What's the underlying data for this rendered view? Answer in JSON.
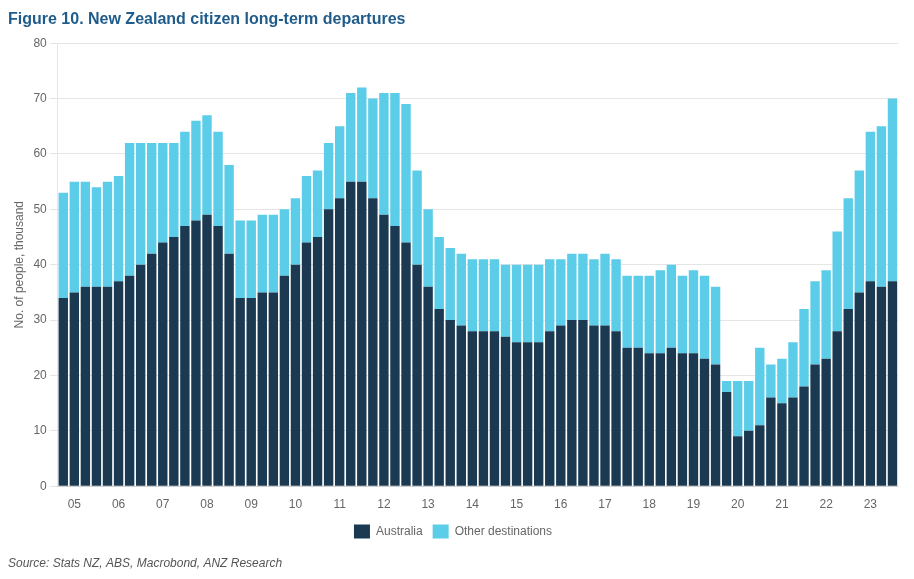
{
  "chart_data": {
    "type": "bar",
    "title": "Figure 10. New Zealand citizen long-term departures",
    "ylabel": "No. of people, thousand",
    "annotations": [
      "Source: Stats NZ, ABS, Macrobond, ANZ Research"
    ],
    "categories": [
      null,
      "05",
      null,
      null,
      null,
      "06",
      null,
      null,
      null,
      "07",
      null,
      null,
      null,
      "08",
      null,
      null,
      null,
      "09",
      null,
      null,
      null,
      "10",
      null,
      null,
      null,
      "11",
      null,
      null,
      null,
      "12",
      null,
      null,
      null,
      "13",
      null,
      null,
      null,
      "14",
      null,
      null,
      null,
      "15",
      null,
      null,
      null,
      "16",
      null,
      null,
      null,
      "17",
      null,
      null,
      null,
      "18",
      null,
      null,
      null,
      "19",
      null,
      null,
      null,
      "20",
      null,
      null,
      null,
      "21",
      null,
      null,
      null,
      "22",
      null,
      null,
      null,
      "23",
      null,
      null
    ],
    "series": [
      {
        "name": "Australia",
        "color": "#1b3a52",
        "values": [
          34,
          35,
          36,
          36,
          36,
          37,
          38,
          40,
          42,
          44,
          45,
          47,
          48,
          49,
          47,
          42,
          34,
          34,
          35,
          35,
          38,
          40,
          44,
          45,
          50,
          52,
          55,
          55,
          52,
          49,
          47,
          44,
          40,
          36,
          32,
          30,
          29,
          28,
          28,
          28,
          27,
          26,
          26,
          26,
          28,
          29,
          30,
          30,
          29,
          29,
          28,
          25,
          25,
          24,
          24,
          25,
          24,
          24,
          23,
          22,
          17,
          9,
          10,
          11,
          16,
          15,
          16,
          18,
          22,
          23,
          28,
          32,
          35,
          37,
          36,
          37
        ]
      },
      {
        "name": "Other destinations",
        "color": "#5bcde8",
        "values": [
          19,
          20,
          19,
          18,
          19,
          19,
          24,
          22,
          20,
          18,
          17,
          17,
          18,
          18,
          17,
          16,
          14,
          14,
          14,
          14,
          12,
          12,
          12,
          12,
          12,
          13,
          16,
          17,
          18,
          22,
          24,
          25,
          17,
          14,
          13,
          13,
          13,
          13,
          13,
          13,
          13,
          14,
          14,
          14,
          13,
          12,
          12,
          12,
          12,
          13,
          13,
          13,
          13,
          14,
          15,
          15,
          14,
          15,
          15,
          14,
          2,
          10,
          9,
          14,
          6,
          8,
          10,
          14,
          15,
          16,
          18,
          20,
          22,
          27,
          29,
          33
        ]
      }
    ],
    "stacked": true,
    "ylim": [
      0,
      80
    ],
    "yticks": [
      0,
      10,
      20,
      30,
      40,
      50,
      60,
      70,
      80
    ],
    "grid": true,
    "legend": "bottom"
  }
}
